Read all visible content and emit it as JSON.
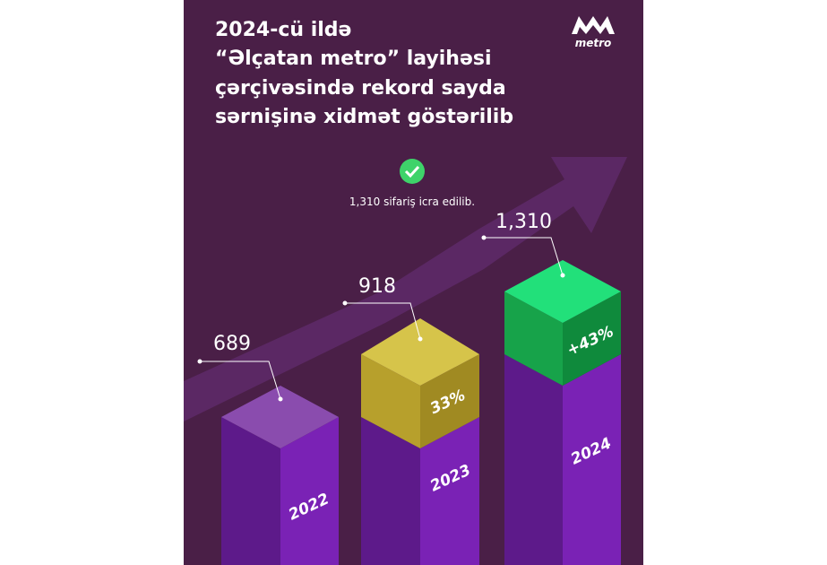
{
  "header": {
    "title_lines": [
      "2024-cü ildə",
      "“Əlçatan metro” layihəsi",
      "çərçivəsində rekord sayda",
      "sərnişinə xidmət göstərilib"
    ]
  },
  "logo": {
    "text": "metro"
  },
  "note": {
    "text": "1,310 sifariş icra edilib."
  },
  "columns": [
    {
      "year": "2022",
      "value": "689"
    },
    {
      "year": "2023",
      "value": "918",
      "change": "33%"
    },
    {
      "year": "2024",
      "value": "1,310",
      "change": "+43%"
    }
  ]
}
